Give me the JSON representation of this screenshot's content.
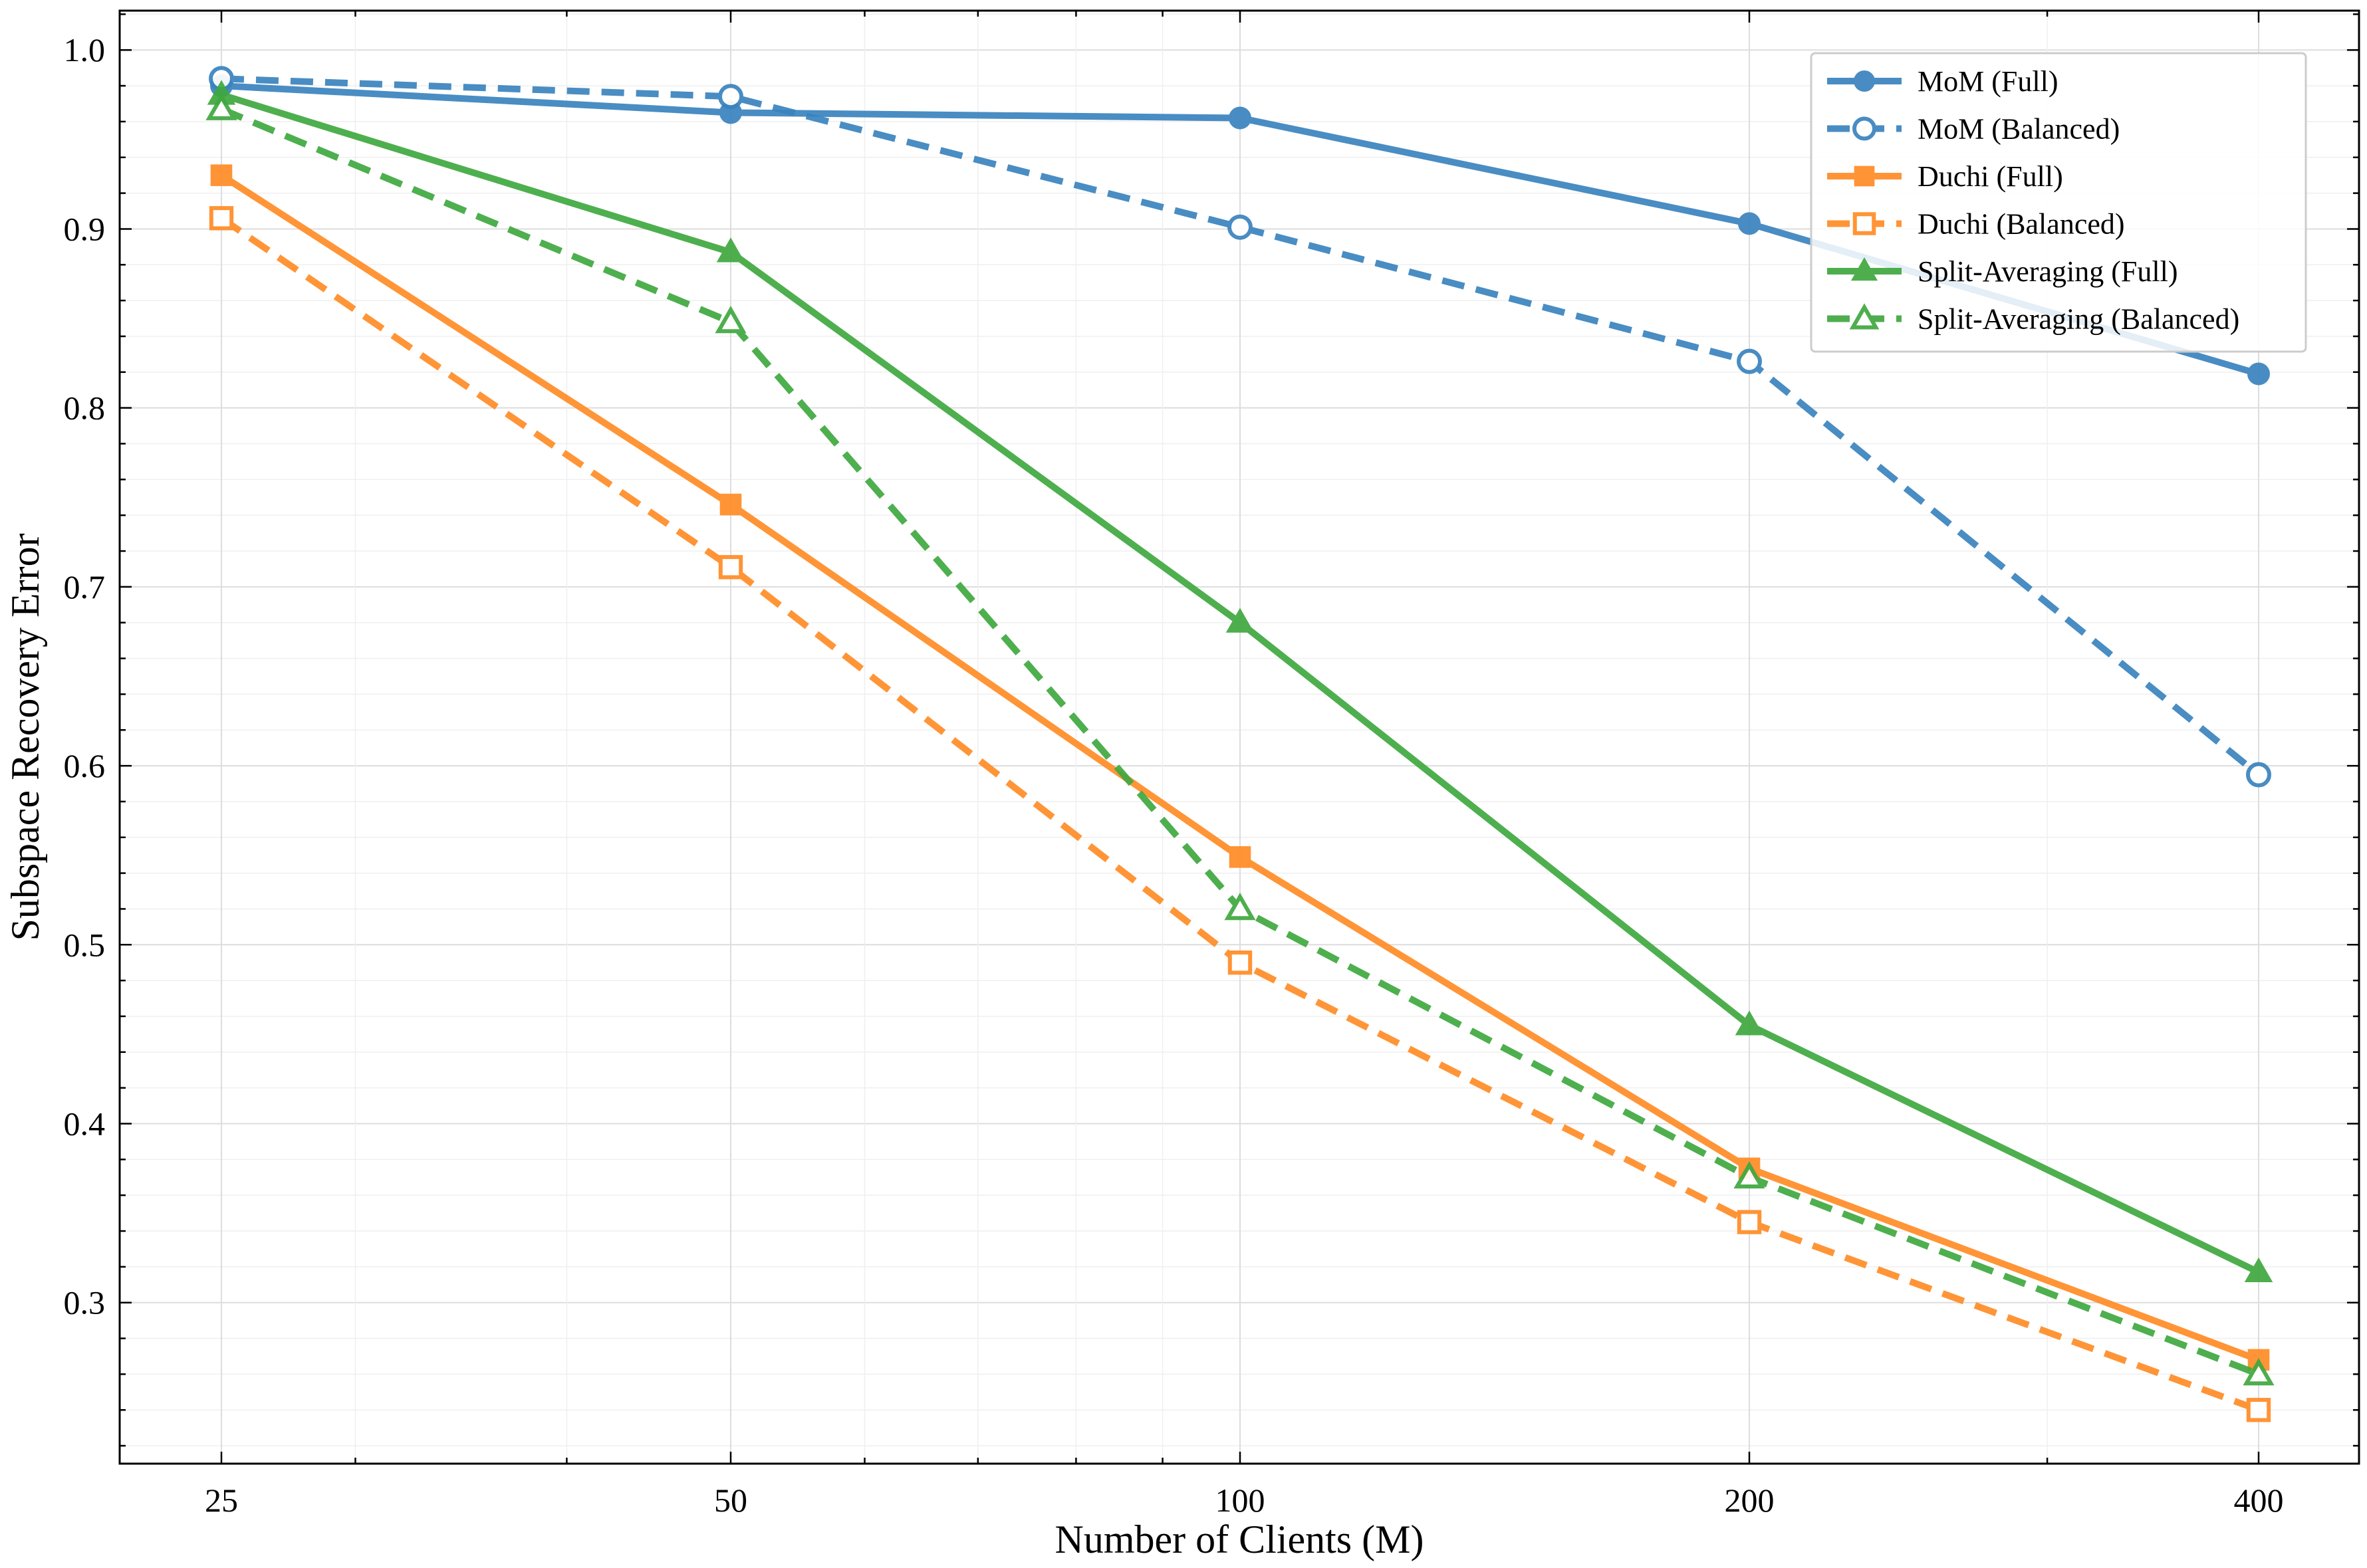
{
  "chart_data": {
    "type": "line",
    "title": "",
    "xlabel": "Number of Clients (M)",
    "ylabel": "Subspace Recovery Error",
    "xscale": "log2",
    "x": [
      25,
      50,
      100,
      200,
      400
    ],
    "x_ticks": [
      "25",
      "50",
      "100",
      "200",
      "400"
    ],
    "y_ticks": [
      "0.3",
      "0.4",
      "0.5",
      "0.6",
      "0.7",
      "0.8",
      "0.9",
      "1.0"
    ],
    "ylim": [
      0.21,
      1.022
    ],
    "grid": true,
    "legend_position": "top-right",
    "series": [
      {
        "name": "MoM (Full)",
        "color": "#3a83be",
        "marker": "circle",
        "filled": true,
        "dashed": false,
        "values": [
          0.98,
          0.965,
          0.962,
          0.903,
          0.819
        ]
      },
      {
        "name": "MoM (Balanced)",
        "color": "#3a83be",
        "marker": "circle",
        "filled": false,
        "dashed": true,
        "values": [
          0.984,
          0.974,
          0.901,
          0.826,
          0.595
        ]
      },
      {
        "name": "Duchi (Full)",
        "color": "#ff8c26",
        "marker": "square",
        "filled": true,
        "dashed": false,
        "values": [
          0.93,
          0.746,
          0.549,
          0.375,
          0.268
        ]
      },
      {
        "name": "Duchi (Balanced)",
        "color": "#ff8c26",
        "marker": "square",
        "filled": false,
        "dashed": true,
        "values": [
          0.906,
          0.711,
          0.49,
          0.345,
          0.24
        ]
      },
      {
        "name": "Split-Averaging (Full)",
        "color": "#3fa83f",
        "marker": "triangle",
        "filled": true,
        "dashed": false,
        "values": [
          0.975,
          0.887,
          0.68,
          0.455,
          0.317
        ]
      },
      {
        "name": "Split-Averaging (Balanced)",
        "color": "#3fa83f",
        "marker": "triangle",
        "filled": false,
        "dashed": true,
        "values": [
          0.967,
          0.848,
          0.52,
          0.37,
          0.26
        ]
      }
    ]
  }
}
